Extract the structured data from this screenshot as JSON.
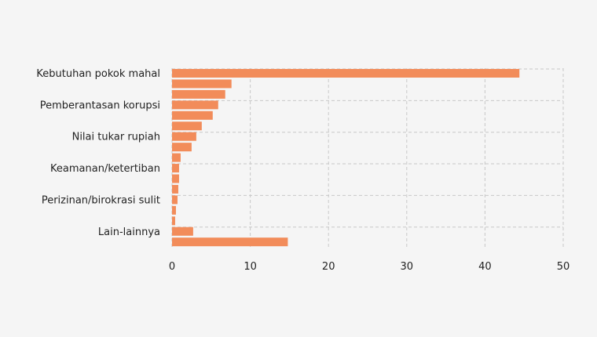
{
  "chart_data": {
    "type": "bar",
    "orientation": "horizontal",
    "title": "",
    "xlabel": "",
    "ylabel": "",
    "categories": [
      "Kebutuhan pokok mahal",
      "",
      "",
      "Pemberantasan korupsi",
      "",
      "",
      "Nilai tukar rupiah",
      "",
      "",
      "Keamanan/ketertiban",
      "",
      "",
      "Perizinan/birokrasi sulit",
      "",
      "",
      "Lain-lainnya",
      ""
    ],
    "values": [
      44.4,
      7.6,
      6.8,
      5.9,
      5.2,
      3.8,
      3.1,
      2.5,
      1.1,
      0.9,
      0.9,
      0.8,
      0.7,
      0.5,
      0.4,
      2.7,
      14.8
    ],
    "xlim": [
      0,
      50
    ],
    "xticks": [
      0,
      10,
      20,
      30,
      40,
      50
    ],
    "grid": true,
    "bar_color": "#f28c5a",
    "grid_color": "#c8c8c8"
  }
}
